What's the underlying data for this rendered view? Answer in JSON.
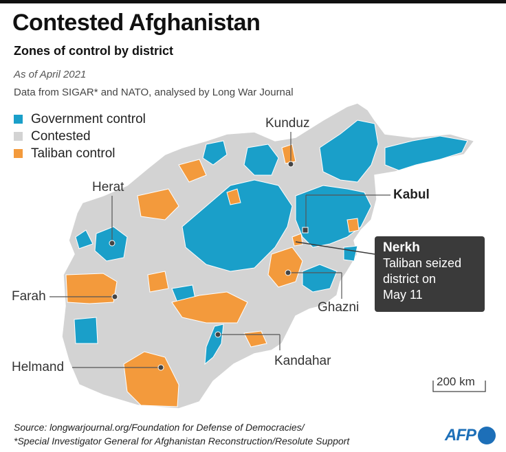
{
  "header": {
    "title": "Contested Afghanistan",
    "subtitle": "Zones of control by district",
    "as_of": "As of April 2021",
    "data_source": "Data from SIGAR* and NATO, analysed by Long War Journal"
  },
  "legend": [
    {
      "label": "Government control",
      "color": "#1a9fc9"
    },
    {
      "label": "Contested",
      "color": "#d3d3d3"
    },
    {
      "label": "Taliban control",
      "color": "#f39a3c"
    }
  ],
  "cities": {
    "herat": "Herat",
    "kunduz": "Kunduz",
    "kabul": "Kabul",
    "farah": "Farah",
    "ghazni": "Ghazni",
    "kandahar": "Kandahar",
    "helmand": "Helmand"
  },
  "callout": {
    "title": "Nerkh",
    "line1": "Taliban seized",
    "line2": "district on",
    "line3": "May 11"
  },
  "scale_label": "200 km",
  "footer": {
    "source_line1": "Source: longwarjournal.org/Foundation for Defense of Democracies/",
    "source_line2": "*Special Investigator General for Afghanistan Reconstruction/Resolute Support"
  },
  "logo_text": "AFP",
  "colors": {
    "government": "#1a9fc9",
    "contested": "#d3d3d3",
    "taliban": "#f39a3c",
    "callout_bg": "#3a3a3a"
  }
}
